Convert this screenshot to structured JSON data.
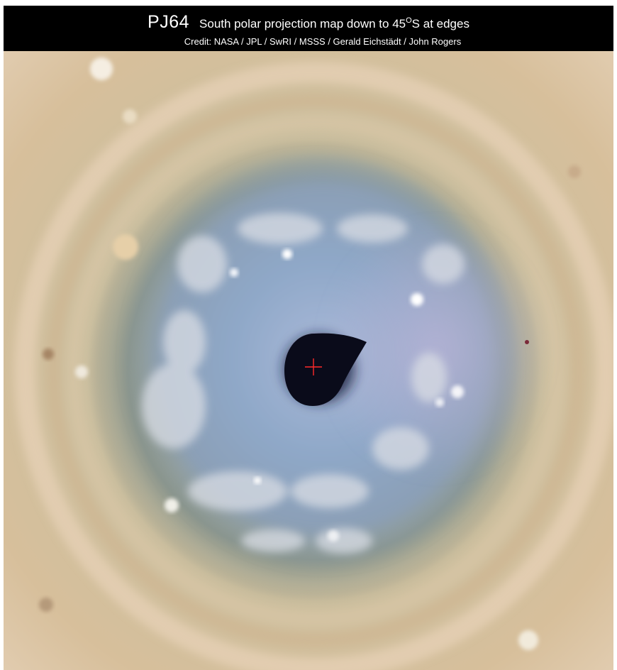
{
  "header": {
    "title_main": "PJ64",
    "title_prefix": "South polar projection map down to 45",
    "title_degree": "O",
    "title_suffix": "S at edges",
    "credit": "Credit: NASA / JPL / SwRI / MSSS / Gerald Eichstädt / John Rogers"
  },
  "image": {
    "subject": "Jupiter south polar projection",
    "colors": {
      "outer_band": "#d9c3a3",
      "mid_band": "#c9c7ad",
      "polar_region": "#8fa9c9",
      "dark_spot": "#0b0c1c",
      "marker": "#ff2a2a"
    }
  }
}
